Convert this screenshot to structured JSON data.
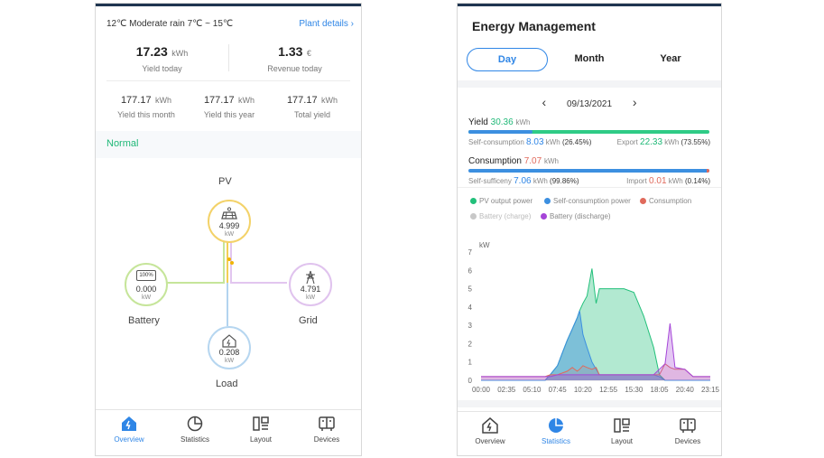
{
  "overview": {
    "weather": "12℃   Moderate rain 7℃ ~ 15℃",
    "plant_details": "Plant details",
    "yield_today": {
      "value": "17.23",
      "unit": "kWh",
      "label": "Yield today"
    },
    "revenue_today": {
      "value": "1.33",
      "unit": "€",
      "label": "Revenue today"
    },
    "stats": [
      {
        "value": "177.17",
        "unit": "kWh",
        "label": "Yield this month"
      },
      {
        "value": "177.17",
        "unit": "kWh",
        "label": "Yield this year"
      },
      {
        "value": "177.17",
        "unit": "kWh",
        "label": "Total yield"
      }
    ],
    "status": "Normal",
    "pv": {
      "label": "PV",
      "value": "4.999",
      "unit": "kW"
    },
    "battery": {
      "label": "Battery",
      "value": "0.000",
      "unit": "kW",
      "soc": "100%"
    },
    "grid": {
      "label": "Grid",
      "value": "4.791",
      "unit": "kW"
    },
    "load": {
      "label": "Load",
      "value": "0.208",
      "unit": "kW"
    },
    "nav": [
      "Overview",
      "Statistics",
      "Layout",
      "Devices"
    ]
  },
  "energy": {
    "title": "Energy Management",
    "tabs": [
      "Day",
      "Month",
      "Year"
    ],
    "date": "09/13/2021",
    "yield": {
      "label": "Yield",
      "value": "30.36",
      "unit": "kWh"
    },
    "self_consumption": {
      "label": "Self-consumption",
      "value": "8.03",
      "unit": "kWh",
      "pct": "(26.45%)"
    },
    "export": {
      "label": "Export",
      "value": "22.33",
      "unit": "kWh",
      "pct": "(73.55%)"
    },
    "consumption": {
      "label": "Consumption",
      "value": "7.07",
      "unit": "kWh"
    },
    "self_sufficiency": {
      "label": "Self-sufficeny",
      "value": "7.06",
      "unit": "kWh",
      "pct": "(99.86%)"
    },
    "import": {
      "label": "Import",
      "value": "0.01",
      "unit": "kWh",
      "pct": "(0.14%)"
    },
    "legend": [
      {
        "name": "PV output power",
        "color": "#22c07a"
      },
      {
        "name": "Self-consumption power",
        "color": "#3c8fe0"
      },
      {
        "name": "Consumption",
        "color": "#e06a5c"
      },
      {
        "name": "Battery (charge)",
        "color": "#c8c8c8"
      },
      {
        "name": "Battery (discharge)",
        "color": "#a545d8"
      }
    ],
    "nav": [
      "Overview",
      "Statistics",
      "Layout",
      "Devices"
    ]
  },
  "chart_data": {
    "type": "area",
    "ylabel": "kW",
    "ylim": [
      0,
      7
    ],
    "yticks": [
      "0",
      "1",
      "2",
      "3",
      "4",
      "5",
      "6",
      "7"
    ],
    "xticks": [
      "00:00",
      "02:35",
      "05:10",
      "07:45",
      "10:20",
      "12:55",
      "15:30",
      "18:05",
      "20:40",
      "23:15"
    ],
    "x": [
      "00:00",
      "02:35",
      "05:10",
      "06:30",
      "07:00",
      "07:45",
      "08:15",
      "08:45",
      "09:15",
      "09:45",
      "10:00",
      "10:20",
      "10:45",
      "11:15",
      "11:40",
      "12:00",
      "12:30",
      "12:55",
      "13:30",
      "14:00",
      "14:30",
      "15:30",
      "16:30",
      "17:30",
      "18:05",
      "18:40",
      "19:10",
      "19:40",
      "20:40",
      "21:30",
      "23:15"
    ],
    "series": [
      {
        "name": "PV output power",
        "color": "#22c07a",
        "values": [
          0,
          0,
          0,
          0,
          0.3,
          0.8,
          1.5,
          2.2,
          2.8,
          3.4,
          3.8,
          4.2,
          4.6,
          6.1,
          4.2,
          5.0,
          5.0,
          5.0,
          5.0,
          5.0,
          5.0,
          4.8,
          3.5,
          1.8,
          0.3,
          0,
          0,
          0,
          0,
          0,
          0
        ]
      },
      {
        "name": "Self-consumption power",
        "color": "#3c8fe0",
        "values": [
          0,
          0,
          0,
          0,
          0.3,
          0.8,
          1.5,
          2.2,
          2.8,
          3.4,
          3.8,
          2.5,
          1.8,
          1.0,
          0.6,
          0.3,
          0.3,
          0.3,
          0.3,
          0.3,
          0.3,
          0.3,
          0.3,
          0.3,
          0.2,
          0,
          0,
          0,
          0,
          0,
          0
        ]
      },
      {
        "name": "Consumption",
        "color": "#e06a5c",
        "values": [
          0.2,
          0.2,
          0.2,
          0.2,
          0.3,
          0.3,
          0.4,
          0.5,
          0.7,
          0.5,
          0.6,
          0.8,
          0.7,
          0.6,
          0.7,
          0.3,
          0.3,
          0.3,
          0.3,
          0.3,
          0.3,
          0.3,
          0.3,
          0.3,
          0.3,
          0.9,
          0.7,
          0.6,
          0.6,
          0.2,
          0.2
        ]
      },
      {
        "name": "Battery (discharge)",
        "color": "#a545d8",
        "values": [
          0.2,
          0.2,
          0.2,
          0.2,
          0.2,
          0.3,
          0.3,
          0.3,
          0.3,
          0.3,
          0.3,
          0.3,
          0.3,
          0.3,
          0.3,
          0.3,
          0.3,
          0.3,
          0.3,
          0.3,
          0.3,
          0.3,
          0.3,
          0.3,
          0.6,
          0.9,
          3.1,
          0.7,
          0.6,
          0.2,
          0.2
        ]
      }
    ]
  }
}
